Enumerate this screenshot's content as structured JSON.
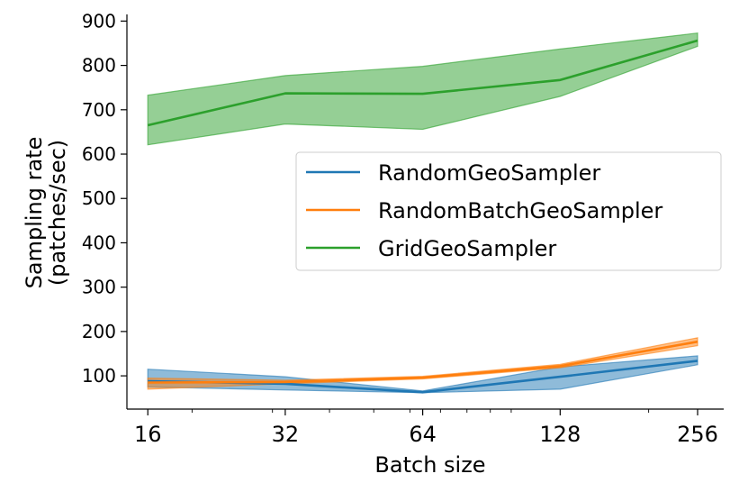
{
  "chart_data": {
    "type": "line",
    "xscale": "log2",
    "xlabel": "Batch size",
    "ylabel_lines": [
      "Sampling rate",
      "(patches/sec)"
    ],
    "x": [
      16,
      32,
      64,
      128,
      256
    ],
    "xticks": [
      "16",
      "32",
      "64",
      "128",
      "256"
    ],
    "yticks": [
      "100",
      "200",
      "300",
      "400",
      "500",
      "600",
      "700",
      "800",
      "900"
    ],
    "ylim": [
      25,
      915
    ],
    "xlim": [
      14.4,
      292
    ],
    "grid": false,
    "legend_position": "center-right",
    "series": [
      {
        "name": "RandomGeoSampler",
        "color": "#1f77b4",
        "values": [
          88,
          82,
          63,
          98,
          134
        ],
        "lower": [
          75,
          68,
          62,
          70,
          125
        ],
        "upper": [
          115,
          98,
          66,
          120,
          145
        ]
      },
      {
        "name": "RandomBatchGeoSampler",
        "color": "#ff7f0e",
        "values": [
          85,
          86,
          96,
          122,
          177
        ],
        "lower": [
          70,
          82,
          93,
          118,
          168
        ],
        "upper": [
          95,
          90,
          99,
          126,
          186
        ]
      },
      {
        "name": "GridGeoSampler",
        "color": "#2ca02c",
        "values": [
          665,
          737,
          736,
          767,
          856
        ],
        "lower": [
          621,
          668,
          656,
          730,
          843
        ],
        "upper": [
          733,
          777,
          798,
          837,
          873
        ]
      }
    ]
  }
}
